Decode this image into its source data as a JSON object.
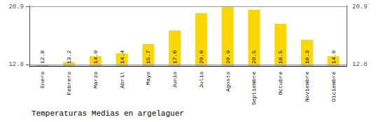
{
  "chart_data": {
    "type": "bar",
    "title": "Temperaturas Medias en argelaguer",
    "categories": [
      "Enero",
      "Febrero",
      "Marzo",
      "Abril",
      "Mayo",
      "Junio",
      "Julio",
      "Agosto",
      "Septiembre",
      "Octubre",
      "Noviembre",
      "Diciembre"
    ],
    "values": [
      12.8,
      13.2,
      14.0,
      14.4,
      15.7,
      17.6,
      20.0,
      20.9,
      20.5,
      18.5,
      16.3,
      14.0
    ],
    "value_labels": [
      "12.8",
      "13.2",
      "14.0",
      "14.4",
      "15.7",
      "17.6",
      "20.0",
      "20.9",
      "20.5",
      "18.5",
      "16.3",
      "14.0"
    ],
    "data_labels": true,
    "color": "#FFD700",
    "ylim": [
      12.65,
      21.05
    ],
    "yticks": [
      12.8,
      20.9
    ],
    "y2lim": [
      12.65,
      21.05
    ],
    "y2ticks": [
      12.8,
      20.9
    ],
    "grid": true
  }
}
